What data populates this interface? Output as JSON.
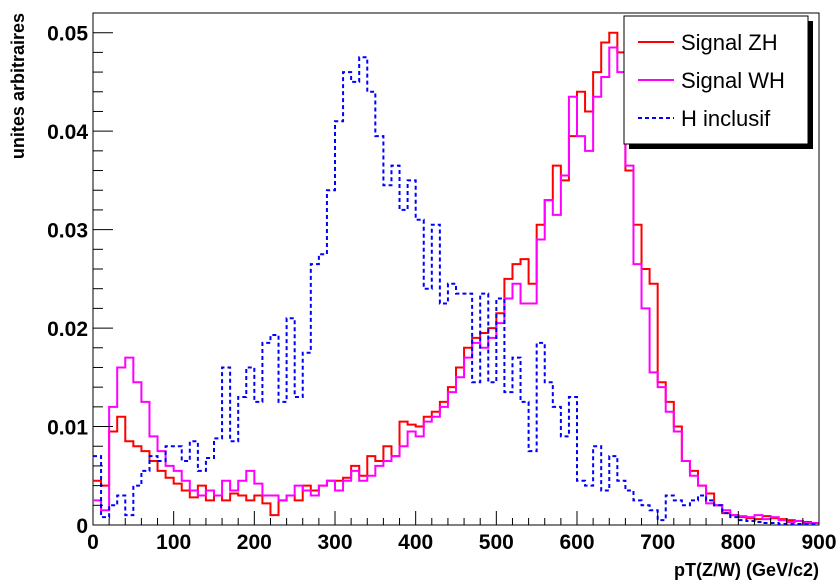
{
  "chart_data": {
    "type": "line",
    "title": "",
    "xlabel": "pT(Z/W) (GeV/c2)",
    "ylabel": "unites arbitraires",
    "xlim": [
      0,
      900
    ],
    "ylim": [
      0,
      0.052
    ],
    "x_ticks": [
      "0",
      "100",
      "200",
      "300",
      "400",
      "500",
      "600",
      "700",
      "800",
      "900"
    ],
    "y_ticks": [
      "0",
      "0.01",
      "0.02",
      "0.03",
      "0.04",
      "0.05"
    ],
    "legend_position": "top-right",
    "grid": false,
    "bin_width": 10,
    "bin_start": 0,
    "series": [
      {
        "name": "Signal ZH",
        "color": "#ff0000",
        "style": "solid",
        "values": [
          0.0045,
          0.004,
          0.0095,
          0.011,
          0.0085,
          0.008,
          0.0075,
          0.0065,
          0.0055,
          0.0048,
          0.0042,
          0.0035,
          0.0028,
          0.004,
          0.0025,
          0.003,
          0.0025,
          0.0032,
          0.003,
          0.0025,
          0.003,
          0.0022,
          0.001,
          0.0025,
          0.003,
          0.0025,
          0.004,
          0.0035,
          0.004,
          0.0045,
          0.0045,
          0.0048,
          0.006,
          0.005,
          0.007,
          0.0065,
          0.008,
          0.007,
          0.0105,
          0.0102,
          0.01,
          0.011,
          0.0115,
          0.0125,
          0.014,
          0.016,
          0.018,
          0.019,
          0.0195,
          0.02,
          0.0215,
          0.025,
          0.0265,
          0.027,
          0.0245,
          0.0305,
          0.033,
          0.0365,
          0.035,
          0.0395,
          0.044,
          0.042,
          0.046,
          0.049,
          0.05,
          0.048,
          0.036,
          0.0305,
          0.026,
          0.0245,
          0.0145,
          0.0125,
          0.01,
          0.0065,
          0.0055,
          0.004,
          0.0032,
          0.002,
          0.0012,
          0.001,
          0.0008,
          0.0007,
          0.0006,
          0.0009,
          0.0007,
          0.0006,
          0.0005,
          0.0004,
          0.0003,
          0.0002
        ]
      },
      {
        "name": "Signal WH",
        "color": "#ff00ff",
        "style": "solid",
        "values": [
          0.0025,
          0.0015,
          0.012,
          0.016,
          0.017,
          0.0145,
          0.0125,
          0.009,
          0.0075,
          0.006,
          0.0055,
          0.0045,
          0.0035,
          0.003,
          0.0035,
          0.003,
          0.0045,
          0.0035,
          0.0045,
          0.0055,
          0.0042,
          0.003,
          0.003,
          0.0025,
          0.003,
          0.004,
          0.0035,
          0.003,
          0.004,
          0.0045,
          0.0035,
          0.0045,
          0.0055,
          0.0045,
          0.005,
          0.006,
          0.0065,
          0.007,
          0.008,
          0.0095,
          0.009,
          0.0105,
          0.011,
          0.012,
          0.0135,
          0.015,
          0.017,
          0.0185,
          0.018,
          0.019,
          0.0205,
          0.023,
          0.0245,
          0.0225,
          0.0225,
          0.029,
          0.033,
          0.0315,
          0.0355,
          0.0435,
          0.0395,
          0.038,
          0.0435,
          0.0455,
          0.0485,
          0.046,
          0.0365,
          0.0265,
          0.022,
          0.0155,
          0.014,
          0.0115,
          0.0095,
          0.0065,
          0.005,
          0.004,
          0.0022,
          0.002,
          0.0015,
          0.001,
          0.0009,
          0.0008,
          0.001,
          0.0006,
          0.0008,
          0.0005,
          0.0003,
          0.0004,
          0.0002,
          0.0002
        ]
      },
      {
        "name": "H inclusif",
        "color": "#0000ff",
        "style": "dashed",
        "values": [
          0.007,
          0.0008,
          0.002,
          0.003,
          0.001,
          0.004,
          0.0055,
          0.007,
          0.0065,
          0.008,
          0.008,
          0.0065,
          0.0085,
          0.0055,
          0.0068,
          0.0088,
          0.016,
          0.0085,
          0.013,
          0.016,
          0.0125,
          0.0185,
          0.0193,
          0.0125,
          0.021,
          0.013,
          0.0175,
          0.0265,
          0.0275,
          0.034,
          0.041,
          0.046,
          0.045,
          0.0475,
          0.044,
          0.0395,
          0.0345,
          0.0365,
          0.032,
          0.035,
          0.031,
          0.024,
          0.0305,
          0.0225,
          0.0245,
          0.0235,
          0.0235,
          0.0145,
          0.0235,
          0.0145,
          0.023,
          0.0135,
          0.017,
          0.0125,
          0.0075,
          0.0185,
          0.0145,
          0.012,
          0.009,
          0.013,
          0.0045,
          0.004,
          0.008,
          0.0035,
          0.007,
          0.0045,
          0.0035,
          0.0025,
          0.002,
          0.0015,
          0.0005,
          0.003,
          0.0025,
          0.002,
          0.0025,
          0.003,
          0.0025,
          0.002,
          0.0012,
          0.0008,
          0.0005,
          0.0004,
          0.0003,
          0.0002,
          0.0002,
          0.0001,
          0.0001,
          0.0001,
          0.0001,
          0.0001
        ]
      }
    ]
  }
}
